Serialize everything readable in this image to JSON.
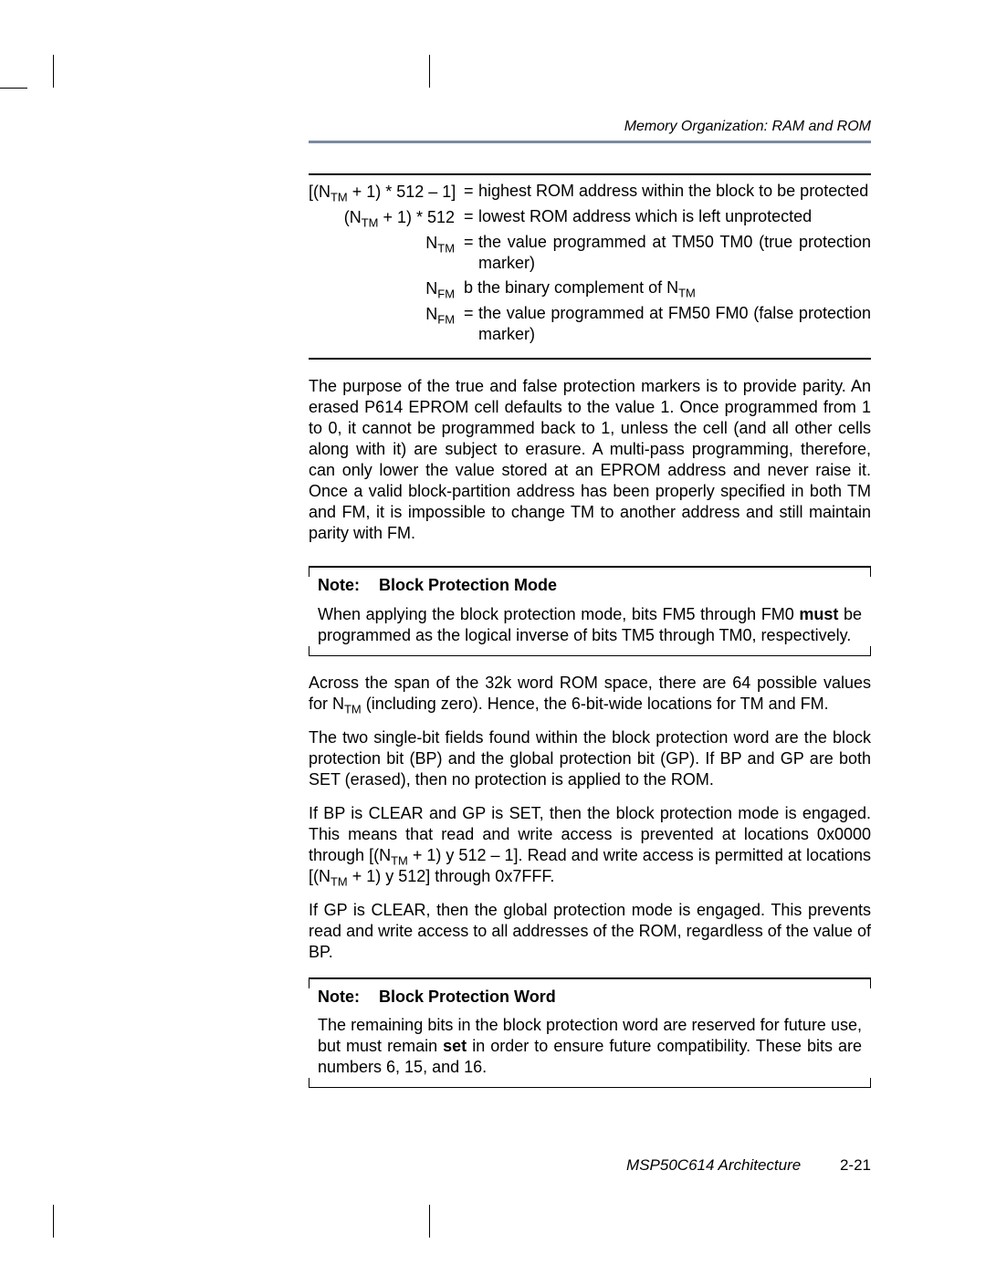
{
  "running_head": "Memory Organization: RAM and ROM",
  "defs": {
    "r1_label_html": "[(N<sub class=\"tm\">TM</sub> + 1) * 512 – 1]",
    "r1_text": "highest ROM address within the block to be protected",
    "r2_label_html": "(N<sub class=\"tm\">TM</sub> + 1) * 512",
    "r2_text": "lowest ROM address which is left unprotected",
    "r3_label_html": "N<sub class=\"tm\">TM</sub>",
    "r3_text": "the value programmed at TM50 TM0 (true protection marker)",
    "r4_label_html": "N<sub class=\"tm\">FM</sub>",
    "r4_text_html": "b the binary complement of N<sub class=\"tm\">TM</sub>",
    "r5_label_html": "N<sub class=\"tm\">FM</sub>",
    "r5_text": "the value programmed at FM50 FM0 (false protection marker)"
  },
  "para1": "The purpose of the true and false protection markers is to provide parity. An erased P614 EPROM cell defaults to the value 1. Once programmed from 1 to 0, it cannot be programmed back to 1, unless the cell (and all other cells along with it) are subject to erasure. A multi-pass programming, therefore, can only lower the value stored at an EPROM address and never raise it. Once a valid block-partition address has been properly specified in both TM and FM, it is impossible to change TM to another address and still maintain parity with FM.",
  "note1": {
    "label": "Note:",
    "title": "Block Protection Mode",
    "body_html": "When applying the block protection mode, bits FM5 through FM0 <b>must</b> be programmed as the logical inverse of bits TM5 through TM0, respectively."
  },
  "para2_html": "Across the span of the 32k word ROM space, there are 64 possible values for N<sub class=\"tm\">TM</sub> (including zero). Hence, the 6-bit-wide locations for TM and FM.",
  "para3": "The two single-bit fields found within the block protection word are the block protection bit (BP) and the global protection bit (GP). If BP and GP are both SET (erased), then no protection is applied to the ROM.",
  "para4_html": "If BP is CLEAR and GP is SET, then the block protection mode is engaged. This means that read and write access is prevented at locations 0x0000 through [(N<sub class=\"tm\">TM</sub> + 1) y 512 – 1]. Read and write access is permitted at locations [(N<sub class=\"tm\">TM</sub> + 1) y 512] through 0x7FFF.",
  "para5": "If GP is CLEAR, then the global protection mode is engaged. This prevents read and write access to all addresses of the ROM, regardless of the value of BP.",
  "note2": {
    "label": "Note:",
    "title": "Block Protection Word",
    "body_html": "The remaining bits in the block protection word are reserved for future use, but must remain <b>set</b> in order to ensure future compatibility. These bits are numbers 6, 15, and 16."
  },
  "footer": {
    "chapter": "MSP50C614 Architecture",
    "page": "2-21"
  }
}
